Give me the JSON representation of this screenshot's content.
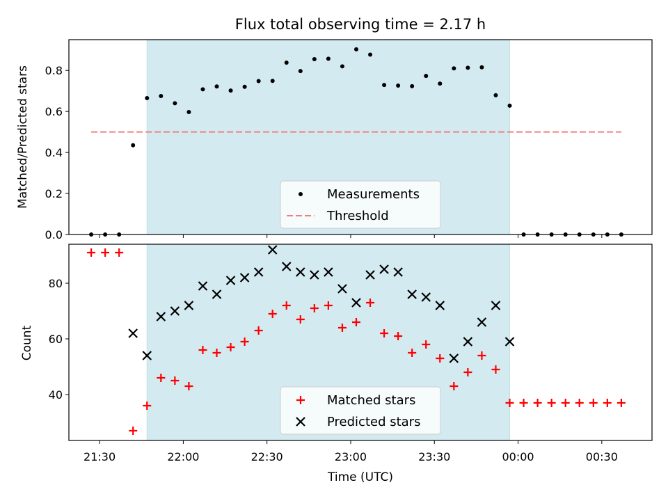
{
  "chart_data": [
    {
      "type": "scatter",
      "title": "Flux total observing time = 2.17 h",
      "xlabel": "",
      "ylabel": "Matched/Predicted stars",
      "x_range_minutes": [
        -11,
        198
      ],
      "ylim": [
        0,
        0.95
      ],
      "xticks": [],
      "yticks": [
        {
          "value": 0.0,
          "label": "0.0"
        },
        {
          "value": 0.2,
          "label": "0.2"
        },
        {
          "value": 0.4,
          "label": "0.4"
        },
        {
          "value": 0.6,
          "label": "0.6"
        },
        {
          "value": 0.8,
          "label": "0.8"
        }
      ],
      "shaded_span": {
        "start": "21:47",
        "end": "23:57",
        "color": "#d3eaf0"
      },
      "legend": {
        "position": "lower center",
        "entries": [
          "Measurements",
          "Threshold"
        ]
      },
      "series": [
        {
          "name": "Measurements",
          "marker": "dot",
          "color": "#000000",
          "x": [
            "21:27",
            "21:32",
            "21:37",
            "21:42",
            "21:47",
            "21:52",
            "21:57",
            "22:02",
            "22:07",
            "22:12",
            "22:17",
            "22:22",
            "22:27",
            "22:32",
            "22:37",
            "22:42",
            "22:47",
            "22:52",
            "22:57",
            "23:02",
            "23:07",
            "23:12",
            "23:17",
            "23:22",
            "23:27",
            "23:32",
            "23:37",
            "23:42",
            "23:47",
            "23:52",
            "23:57",
            "00:02",
            "00:07",
            "00:12",
            "00:17",
            "00:22",
            "00:27",
            "00:32",
            "00:37"
          ],
          "y": [
            0,
            0,
            0,
            0.435,
            0.665,
            0.675,
            0.64,
            0.597,
            0.708,
            0.722,
            0.702,
            0.72,
            0.748,
            0.749,
            0.838,
            0.797,
            0.855,
            0.857,
            0.82,
            0.903,
            0.877,
            0.729,
            0.726,
            0.723,
            0.773,
            0.736,
            0.81,
            0.813,
            0.815,
            0.679,
            0.628,
            0,
            0,
            0,
            0,
            0,
            0,
            0,
            0
          ]
        },
        {
          "name": "Threshold",
          "style": "dashed-line",
          "color": "#f08080",
          "x": [
            "21:27",
            "00:37"
          ],
          "y": [
            0.5,
            0.5
          ]
        }
      ]
    },
    {
      "type": "scatter",
      "title": "",
      "xlabel": "Time (UTC)",
      "ylabel": "Count",
      "x_range_minutes": [
        -11,
        198
      ],
      "ylim": [
        23.5,
        94
      ],
      "xticks": [
        {
          "value": "21:30",
          "label": "21:30"
        },
        {
          "value": "22:00",
          "label": "22:00"
        },
        {
          "value": "22:30",
          "label": "22:30"
        },
        {
          "value": "23:00",
          "label": "23:00"
        },
        {
          "value": "23:30",
          "label": "23:30"
        },
        {
          "value": "00:00",
          "label": "00:00"
        },
        {
          "value": "00:30",
          "label": "00:30"
        }
      ],
      "yticks": [
        {
          "value": 40,
          "label": "40"
        },
        {
          "value": 60,
          "label": "60"
        },
        {
          "value": 80,
          "label": "80"
        }
      ],
      "shaded_span": {
        "start": "21:47",
        "end": "23:57",
        "color": "#d3eaf0"
      },
      "legend": {
        "position": "lower center",
        "entries": [
          "Matched stars",
          "Predicted stars"
        ]
      },
      "series": [
        {
          "name": "Matched stars",
          "marker": "plus",
          "color": "#ff0000",
          "x": [
            "21:27",
            "21:32",
            "21:37",
            "21:42",
            "21:47",
            "21:52",
            "21:57",
            "22:02",
            "22:07",
            "22:12",
            "22:17",
            "22:22",
            "22:27",
            "22:32",
            "22:37",
            "22:42",
            "22:47",
            "22:52",
            "22:57",
            "23:02",
            "23:07",
            "23:12",
            "23:17",
            "23:22",
            "23:27",
            "23:32",
            "23:37",
            "23:42",
            "23:47",
            "23:52",
            "23:57",
            "00:02",
            "00:07",
            "00:12",
            "00:17",
            "00:22",
            "00:27",
            "00:32",
            "00:37"
          ],
          "y": [
            91,
            91,
            91,
            27,
            36,
            46,
            45,
            43,
            56,
            55,
            57,
            59,
            63,
            69,
            72,
            67,
            71,
            72,
            64,
            66,
            73,
            62,
            61,
            55,
            58,
            53,
            43,
            48,
            54,
            49,
            37,
            37,
            37,
            37,
            37,
            37,
            37,
            37,
            37
          ]
        },
        {
          "name": "Predicted stars",
          "marker": "x",
          "color": "#000000",
          "x": [
            "21:42",
            "21:47",
            "21:52",
            "21:57",
            "22:02",
            "22:07",
            "22:12",
            "22:17",
            "22:22",
            "22:27",
            "22:32",
            "22:37",
            "22:42",
            "22:47",
            "22:52",
            "22:57",
            "23:02",
            "23:07",
            "23:12",
            "23:17",
            "23:22",
            "23:27",
            "23:32",
            "23:37",
            "23:42",
            "23:47",
            "23:52",
            "23:57"
          ],
          "y": [
            62,
            54,
            68,
            70,
            72,
            79,
            76,
            81,
            82,
            84,
            92,
            86,
            84,
            83,
            84,
            78,
            73,
            83,
            85,
            84,
            76,
            75,
            72,
            53,
            59,
            66,
            72,
            59
          ]
        }
      ]
    }
  ]
}
